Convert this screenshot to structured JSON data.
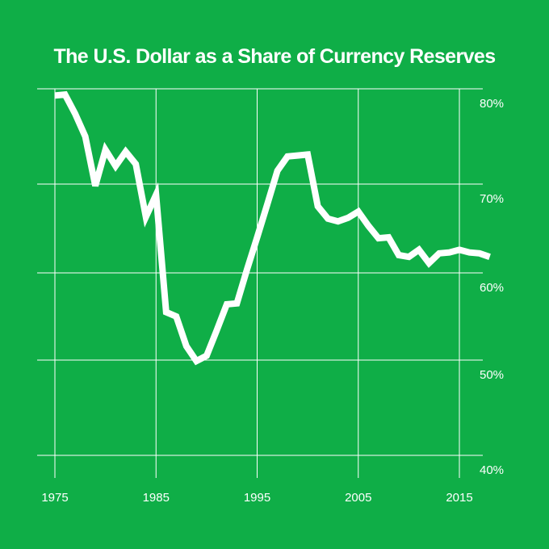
{
  "chart_data": {
    "type": "line",
    "title": "The U.S. Dollar as a Share of Currency Reserves",
    "xlabel": "",
    "ylabel": "",
    "x_ticks": [
      1975,
      1985,
      1995,
      2005,
      2015
    ],
    "x_tick_labels": [
      "1975",
      "1985",
      "1995",
      "2005",
      "2015"
    ],
    "y_ticks": [
      40,
      50,
      60,
      70,
      80
    ],
    "y_tick_labels": [
      "40%",
      "50%",
      "60%",
      "70%",
      "80%"
    ],
    "xlim": [
      1975,
      2018
    ],
    "ylim": [
      40,
      80
    ],
    "grid": true,
    "colors": {
      "background": "#0fae47",
      "line": "#ffffff",
      "grid": "#ffffff"
    },
    "series": [
      {
        "x": [
          1975,
          1976,
          1977,
          1978,
          1979,
          1980,
          1981,
          1982,
          1983,
          1984,
          1985,
          1986,
          1987,
          1988,
          1989,
          1990,
          1991,
          1992,
          1993,
          1994,
          1995,
          1996,
          1997,
          1998,
          1999,
          2000,
          2001,
          2002,
          2003,
          2004,
          2005,
          2006,
          2007,
          2008,
          2009,
          2010,
          2011,
          2012,
          2013,
          2014,
          2015,
          2016,
          2017,
          2018
        ],
        "values": [
          79.3,
          79.4,
          77.4,
          75.0,
          69.8,
          73.6,
          71.9,
          73.4,
          72.1,
          66.3,
          68.8,
          55.5,
          55.0,
          51.6,
          49.9,
          50.5,
          53.4,
          56.4,
          56.5,
          60.4,
          64.0,
          67.7,
          71.4,
          72.9,
          73.0,
          73.1,
          67.5,
          66.1,
          65.8,
          66.2,
          66.9,
          65.3,
          63.9,
          64.0,
          62.0,
          61.8,
          62.6,
          61.1,
          62.2,
          62.3,
          62.6,
          62.3,
          62.2,
          61.8
        ]
      }
    ]
  }
}
